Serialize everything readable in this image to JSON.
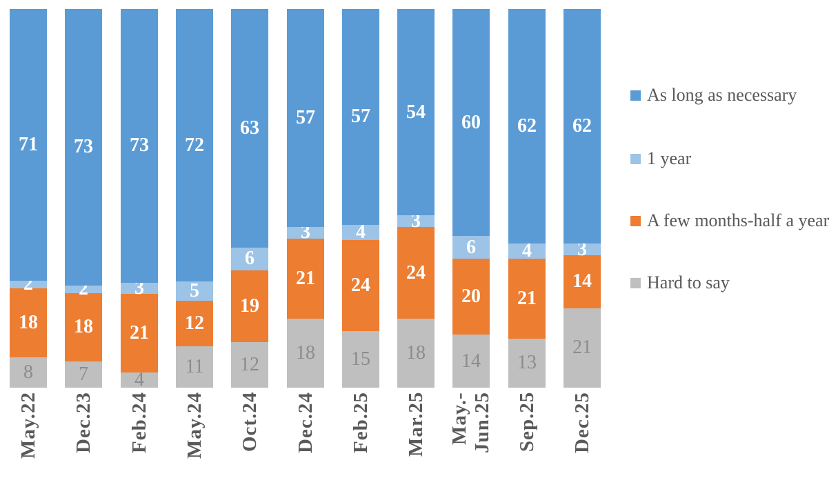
{
  "background": "#FFFFFF",
  "chart_data": {
    "type": "bar",
    "subtype": "stacked-column-percent",
    "title": "",
    "xlabel": "",
    "ylabel": "",
    "ylim": [
      0,
      100
    ],
    "grid": false,
    "legend_position": "right",
    "categories": [
      "May.22",
      "Dec.23",
      "Feb.24",
      "May.24",
      "Oct.24",
      "Dec.24",
      "Feb.25",
      "Mar.25",
      "May.-\nJun.25",
      "Sep.25",
      "Dec.25"
    ],
    "series": [
      {
        "name": "Hard to say",
        "color": "#BFBFBF",
        "label_color": "#8C8C8C",
        "label_bold": false,
        "values": [
          8,
          7,
          4,
          11,
          12,
          18,
          15,
          18,
          14,
          13,
          21
        ]
      },
      {
        "name": "A few months-half a year",
        "color": "#ED7D31",
        "label_color": "#FFFFFF",
        "label_bold": true,
        "values": [
          18,
          18,
          21,
          12,
          19,
          21,
          24,
          24,
          20,
          21,
          14
        ]
      },
      {
        "name": "1 year",
        "color": "#9DC3E6",
        "label_color": "#FFFFFF",
        "label_bold": true,
        "values": [
          2,
          2,
          3,
          5,
          6,
          3,
          4,
          3,
          6,
          4,
          3
        ]
      },
      {
        "name": "As long as necessary",
        "color": "#5B9BD5",
        "label_color": "#FFFFFF",
        "label_bold": true,
        "values": [
          71,
          73,
          73,
          72,
          63,
          57,
          57,
          54,
          60,
          62,
          62
        ]
      }
    ],
    "legend": {
      "items": [
        {
          "label": "As long as necessary",
          "color": "#5B9BD5"
        },
        {
          "label": "1 year",
          "color": "#9DC3E6"
        },
        {
          "label": "A few months-half a year",
          "color": "#ED7D31"
        },
        {
          "label": "Hard to say",
          "color": "#BFBFBF"
        }
      ]
    },
    "axis_text_color": "#595959"
  }
}
